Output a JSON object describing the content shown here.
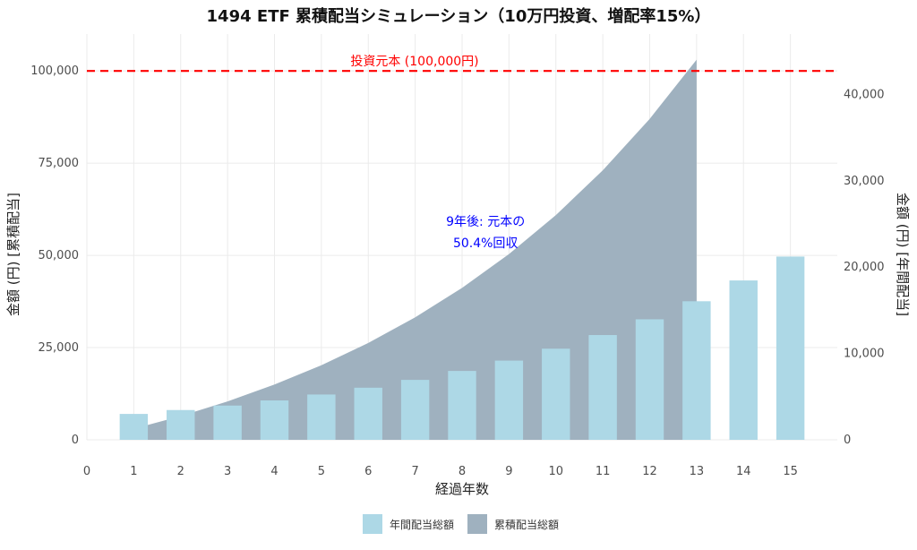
{
  "chart_data": {
    "type": "bar",
    "title": "1494 ETF 累積配当シミュレーション（10万円投資、増配率15%）",
    "xlabel": "経過年数",
    "ylabel_left": "金額 (円) [累積配当]",
    "ylabel_right": "金額 (円) [年間配当]",
    "x_ticks": [
      0,
      1,
      2,
      3,
      4,
      5,
      6,
      7,
      8,
      9,
      10,
      11,
      12,
      13,
      14,
      15
    ],
    "y_left_ticks": [
      0,
      25000,
      50000,
      75000,
      100000
    ],
    "y_left_tick_labels": [
      "0",
      "25,000",
      "50,000",
      "75,000",
      "100,000"
    ],
    "y_right_ticks": [
      0,
      10000,
      20000,
      30000,
      40000
    ],
    "y_right_tick_labels": [
      "0",
      "10,000",
      "20,000",
      "30,000",
      "40,000"
    ],
    "ylim_left": [
      0,
      110000
    ],
    "ylim_right": [
      0,
      47000
    ],
    "xlim": [
      0,
      16
    ],
    "grid": true,
    "legend_position": "bottom",
    "series": [
      {
        "name": "年間配当総額",
        "type": "bar",
        "axis": "right",
        "color": "#add8e6",
        "x": [
          1,
          2,
          3,
          4,
          5,
          6,
          7,
          8,
          9,
          10,
          11,
          12,
          13,
          14,
          15
        ],
        "values": [
          3000,
          3450,
          3968,
          4563,
          5247,
          6034,
          6939,
          7980,
          9177,
          10554,
          12137,
          13958,
          16051,
          18459,
          21228
        ]
      },
      {
        "name": "累積配当総額",
        "type": "area",
        "axis": "left",
        "color": "#9fb1bf",
        "x": [
          1,
          2,
          3,
          4,
          5,
          6,
          7,
          8,
          9,
          10,
          11,
          12,
          13
        ],
        "values": [
          3000,
          6450,
          10418,
          14981,
          20228,
          26262,
          33201,
          41181,
          50358,
          60912,
          73049,
          87007,
          103058
        ]
      }
    ],
    "reference_line": {
      "value": 100000,
      "axis": "left",
      "label": "投資元本 (100,000円)",
      "color": "#ff0000"
    },
    "annotation": {
      "x": 8.5,
      "y": 58000,
      "lines": [
        "9年後: 元本の",
        "50.4%回収"
      ],
      "color": "#0000ff"
    }
  }
}
